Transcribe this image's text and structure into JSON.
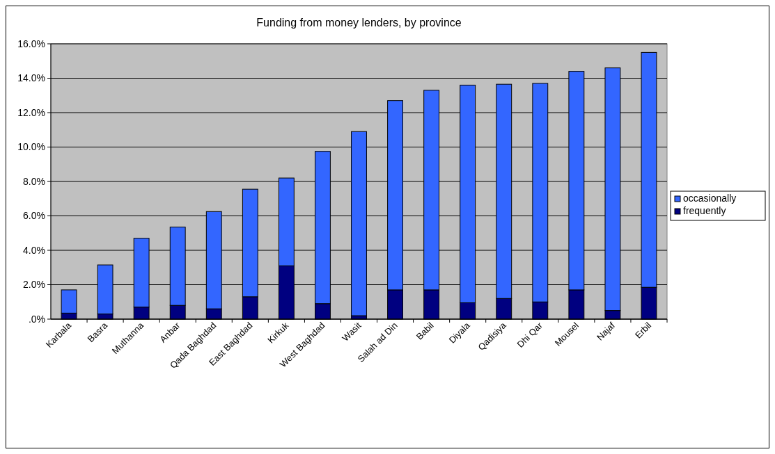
{
  "chart_data": {
    "type": "bar",
    "title": "Funding from money lenders, by province",
    "categories": [
      "Karbala",
      "Basra",
      "Muthanna",
      "Anbar",
      "Qada Baghdad",
      "East Baghdad",
      "Kirkuk",
      "West Baghdad",
      "Wasit",
      "Salah ad Din",
      "Babil",
      "Diyala",
      "Qadisiya",
      "Dhi Qar",
      "Mousel",
      "Najaf",
      "Erbil"
    ],
    "stacked": true,
    "series": [
      {
        "name": "frequently",
        "color": "#000080",
        "values": [
          0.35,
          0.3,
          0.7,
          0.8,
          0.6,
          1.3,
          3.1,
          0.9,
          0.2,
          1.7,
          1.7,
          0.95,
          1.2,
          1.0,
          1.7,
          0.5,
          1.85
        ]
      },
      {
        "name": "occasionally",
        "color": "#3366ff",
        "values": [
          1.35,
          2.85,
          4.0,
          4.55,
          5.65,
          6.25,
          5.1,
          8.85,
          10.7,
          11.0,
          11.6,
          12.65,
          12.45,
          12.7,
          12.7,
          14.1,
          13.65
        ]
      }
    ],
    "ylim": [
      0,
      16
    ],
    "yticks": [
      {
        "value": 0,
        "label": ".0%"
      },
      {
        "value": 2,
        "label": "2.0%"
      },
      {
        "value": 4,
        "label": "4.0%"
      },
      {
        "value": 6,
        "label": "6.0%"
      },
      {
        "value": 8,
        "label": "8.0%"
      },
      {
        "value": 10,
        "label": "10.0%"
      },
      {
        "value": 12,
        "label": "12.0%"
      },
      {
        "value": 14,
        "label": "14.0%"
      },
      {
        "value": 16,
        "label": "16.0%"
      }
    ],
    "grid": "y",
    "legend": "right"
  }
}
